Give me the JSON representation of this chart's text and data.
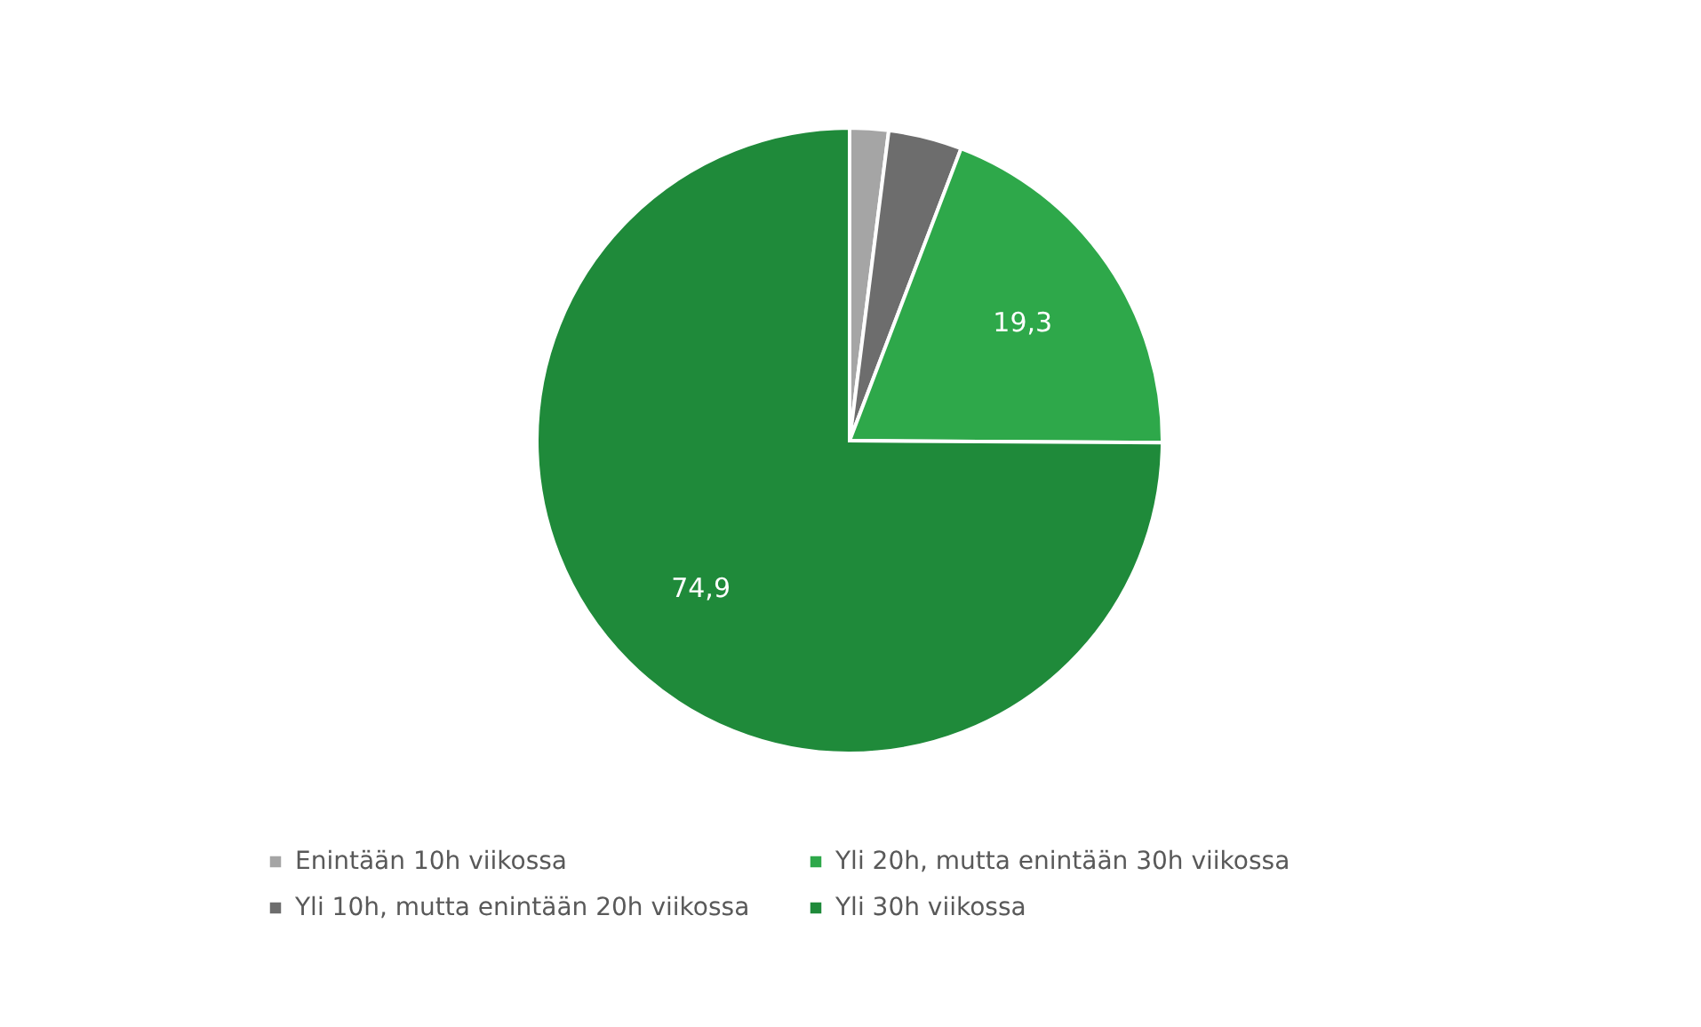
{
  "chart_data": {
    "type": "pie",
    "categories": [
      "Enintään 10h viikossa",
      "Yli 10h, mutta enintään 20h viikossa",
      "Yli 20h, mutta enintään 30h viikossa",
      "Yli 30h viikossa"
    ],
    "values": [
      2.0,
      3.8,
      19.3,
      74.9
    ],
    "colors": [
      "#a5a5a5",
      "#6d6d6d",
      "#2ea84a",
      "#1f8a3a"
    ],
    "value_labels": [
      null,
      null,
      "19,3",
      "74,9"
    ],
    "legend": "bottom"
  }
}
